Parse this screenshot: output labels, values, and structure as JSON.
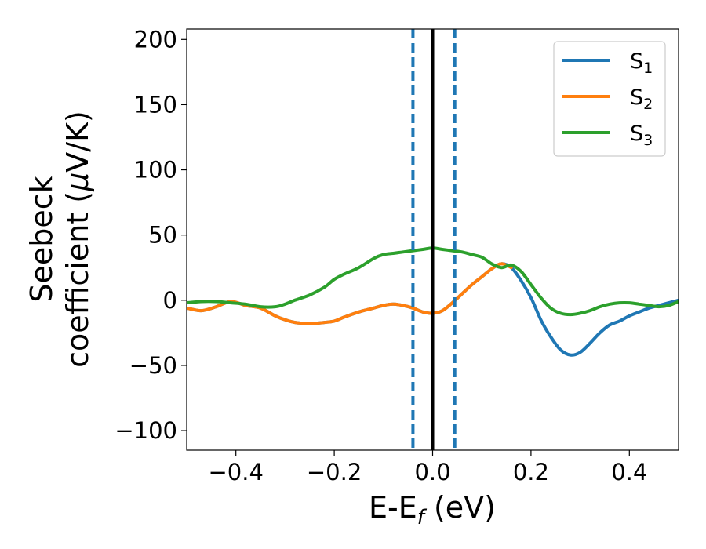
{
  "chart_data": {
    "type": "line",
    "xlabel": "E-E",
    "xlabel_sub": "f",
    "xlabel_units": " (eV)",
    "ylabel_line1": "Seebeck",
    "ylabel_line2": "coefficient  (",
    "ylabel_mu": "μ",
    "ylabel_end": "V/K)",
    "xlim": [
      -0.5,
      0.5
    ],
    "ylim": [
      -115,
      208
    ],
    "xticks": [
      -0.4,
      -0.2,
      0.0,
      0.2,
      0.4
    ],
    "xtick_labels": [
      "−0.4",
      "−0.2",
      "0.0",
      "0.2",
      "0.4"
    ],
    "yticks": [
      -100,
      -50,
      0,
      50,
      100,
      150,
      200
    ],
    "ytick_labels": [
      "−100",
      "−50",
      "0",
      "50",
      "100",
      "150",
      "200"
    ],
    "legend_position": "top-right",
    "vlines": [
      {
        "x": 0.0,
        "color": "#000000",
        "style": "solid"
      },
      {
        "x": -0.04,
        "color": "#1f77b4",
        "style": "dashed"
      },
      {
        "x": 0.045,
        "color": "#1f77b4",
        "style": "dashed"
      }
    ],
    "series": [
      {
        "name": "S",
        "sub": "1",
        "color": "#1f77b4",
        "x": [
          -0.5,
          -0.47,
          -0.44,
          -0.41,
          -0.38,
          -0.35,
          -0.32,
          -0.3,
          -0.28,
          -0.25,
          -0.22,
          -0.2,
          -0.18,
          -0.15,
          -0.12,
          -0.1,
          -0.08,
          -0.06,
          -0.04,
          -0.02,
          0.0,
          0.02,
          0.04,
          0.06,
          0.08,
          0.1,
          0.12,
          0.14,
          0.16,
          0.18,
          0.2,
          0.22,
          0.24,
          0.26,
          0.28,
          0.3,
          0.32,
          0.34,
          0.36,
          0.38,
          0.4,
          0.42,
          0.44,
          0.46,
          0.48,
          0.5
        ],
        "y": [
          -6,
          -8,
          -5,
          -1,
          -4,
          -6,
          -12,
          -15,
          -17,
          -18,
          -17,
          -16,
          -13,
          -9,
          -6,
          -4,
          -3,
          -4,
          -6,
          -9,
          -10,
          -8,
          -2,
          5,
          12,
          18,
          24,
          28,
          25,
          15,
          2,
          -15,
          -28,
          -38,
          -42,
          -40,
          -33,
          -25,
          -19,
          -16,
          -12,
          -9,
          -6,
          -4,
          -2,
          0
        ]
      },
      {
        "name": "S",
        "sub": "2",
        "color": "#ff7f0e",
        "x": [
          -0.5,
          -0.47,
          -0.44,
          -0.41,
          -0.38,
          -0.35,
          -0.32,
          -0.3,
          -0.28,
          -0.25,
          -0.22,
          -0.2,
          -0.18,
          -0.15,
          -0.12,
          -0.1,
          -0.08,
          -0.06,
          -0.04,
          -0.02,
          0.0,
          0.02,
          0.04,
          0.06,
          0.08,
          0.1,
          0.12,
          0.14,
          0.16
        ],
        "y": [
          -6,
          -8,
          -5,
          -1,
          -4,
          -6,
          -12,
          -15,
          -17,
          -18,
          -17,
          -16,
          -13,
          -9,
          -6,
          -4,
          -3,
          -4,
          -6,
          -9,
          -10,
          -8,
          -2,
          5,
          12,
          18,
          24,
          28,
          25
        ]
      },
      {
        "name": "S",
        "sub": "3",
        "color": "#2ca02c",
        "x": [
          -0.5,
          -0.47,
          -0.44,
          -0.41,
          -0.38,
          -0.35,
          -0.32,
          -0.3,
          -0.28,
          -0.25,
          -0.22,
          -0.2,
          -0.18,
          -0.15,
          -0.12,
          -0.1,
          -0.08,
          -0.06,
          -0.04,
          -0.02,
          0.0,
          0.02,
          0.04,
          0.06,
          0.08,
          0.1,
          0.12,
          0.14,
          0.16,
          0.18,
          0.2,
          0.22,
          0.24,
          0.26,
          0.28,
          0.3,
          0.32,
          0.34,
          0.36,
          0.38,
          0.4,
          0.42,
          0.44,
          0.46,
          0.48,
          0.5
        ],
        "y": [
          -2,
          -1,
          -1,
          -2,
          -3,
          -5,
          -5,
          -3,
          0,
          4,
          10,
          16,
          20,
          25,
          32,
          35,
          36,
          37,
          38,
          39,
          40,
          39,
          38,
          37,
          35,
          33,
          28,
          25,
          27,
          22,
          12,
          2,
          -6,
          -10,
          -11,
          -10,
          -8,
          -5,
          -3,
          -2,
          -2,
          -3,
          -4,
          -5,
          -4,
          -1
        ]
      }
    ]
  }
}
